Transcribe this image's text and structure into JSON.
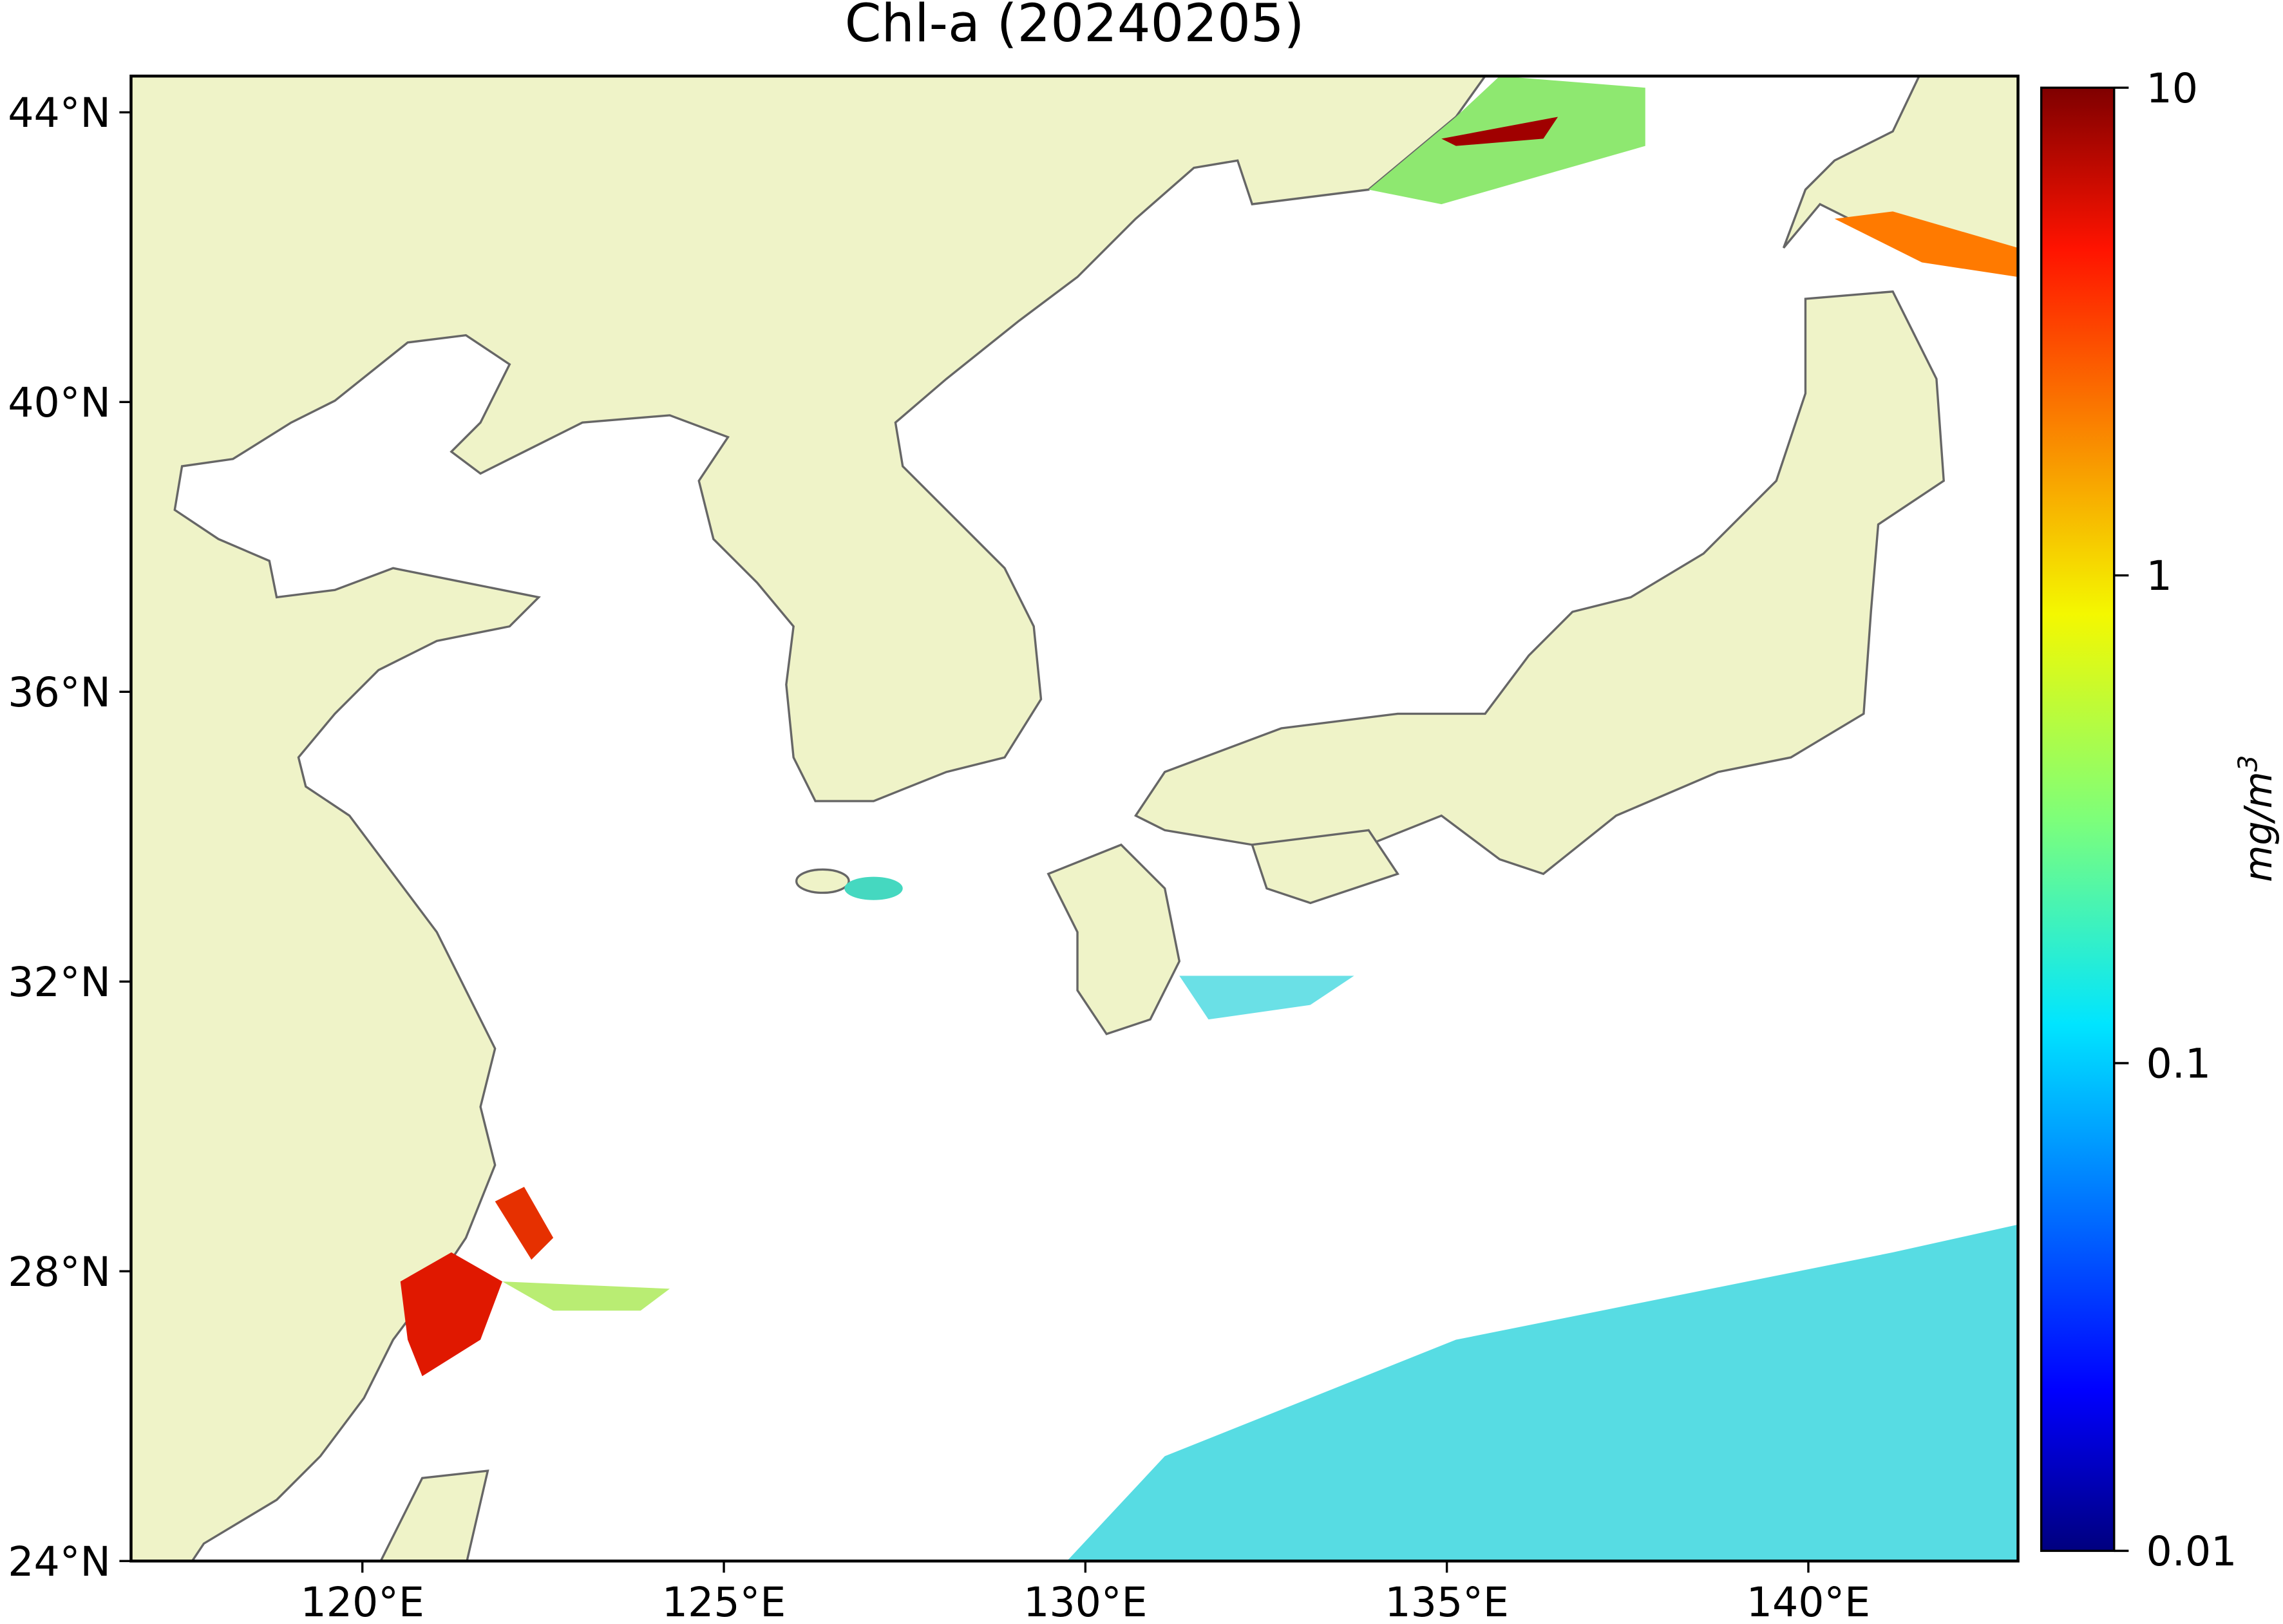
{
  "chart_data": {
    "type": "map",
    "title": "Chl-a (20240205)",
    "xlim": [
      116.8,
      142.9
    ],
    "ylim": [
      24,
      44.5
    ],
    "xticks": [
      {
        "value": 120,
        "label": "120°E"
      },
      {
        "value": 125,
        "label": "125°E"
      },
      {
        "value": 130,
        "label": "130°E"
      },
      {
        "value": 135,
        "label": "135°E"
      },
      {
        "value": 140,
        "label": "140°E"
      }
    ],
    "yticks": [
      {
        "value": 24,
        "label": "24°N"
      },
      {
        "value": 28,
        "label": "28°N"
      },
      {
        "value": 32,
        "label": "32°N"
      },
      {
        "value": 36,
        "label": "36°N"
      },
      {
        "value": 40,
        "label": "40°N"
      },
      {
        "value": 44,
        "label": "44°N"
      }
    ],
    "colorbar": {
      "scale": "log",
      "colormap": "jet",
      "lim": [
        0.01,
        10
      ],
      "ticks": [
        0.01,
        0.1,
        1,
        10
      ],
      "label": "mg/m",
      "label_exponent": "3"
    }
  }
}
